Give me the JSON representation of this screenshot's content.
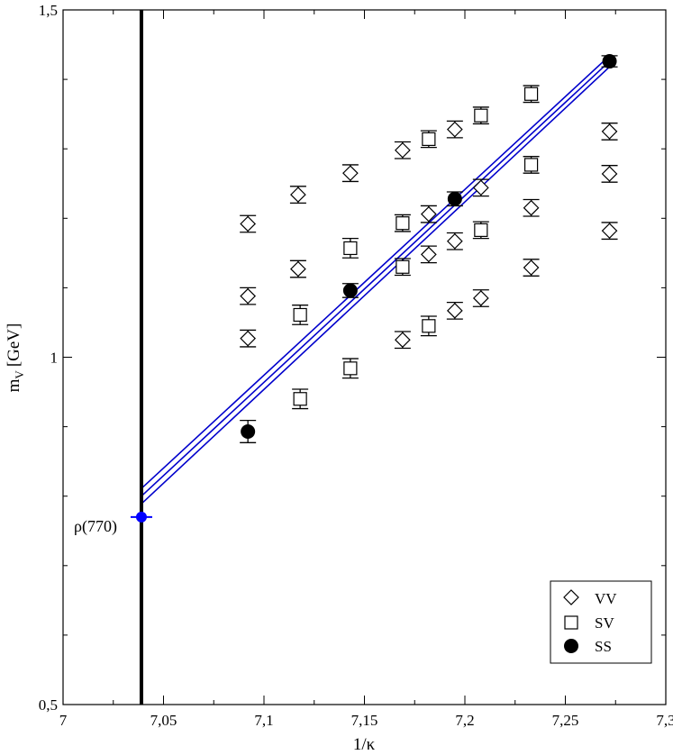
{
  "chart_data": {
    "type": "scatter",
    "xlabel": "1/κ",
    "ylabel_main": "m",
    "ylabel_sub": "V",
    "ylabel_unit": "[GeV]",
    "xlim": [
      7.0,
      7.3
    ],
    "ylim": [
      0.5,
      1.5
    ],
    "x_ticks": [
      7.0,
      7.05,
      7.1,
      7.15,
      7.2,
      7.25,
      7.3
    ],
    "x_tick_labels": [
      "7",
      "7,05",
      "7,1",
      "7,15",
      "7,2",
      "7,25",
      "7,3"
    ],
    "y_tick_labels": [
      {
        "value": 0.5,
        "label": "0,5"
      },
      {
        "value": 1.0,
        "label": "1"
      },
      {
        "value": 1.5,
        "label": "1,5"
      }
    ],
    "y_minor_ticks": [
      0.6,
      0.7,
      0.8,
      0.9,
      1.1,
      1.2,
      1.3,
      1.4
    ],
    "x_minor_ticks": [
      7.025,
      7.075,
      7.125,
      7.175,
      7.225,
      7.275
    ],
    "grid": false,
    "legend_position": "bottom-right",
    "series": [
      {
        "name": "VV",
        "marker": "diamond",
        "points": [
          {
            "x": 7.092,
            "y": 1.192,
            "err": 0.012
          },
          {
            "x": 7.092,
            "y": 1.088,
            "err": 0.012
          },
          {
            "x": 7.092,
            "y": 1.027,
            "err": 0.012
          },
          {
            "x": 7.117,
            "y": 1.234,
            "err": 0.012
          },
          {
            "x": 7.117,
            "y": 1.127,
            "err": 0.012
          },
          {
            "x": 7.143,
            "y": 1.265,
            "err": 0.012
          },
          {
            "x": 7.169,
            "y": 1.298,
            "err": 0.012
          },
          {
            "x": 7.169,
            "y": 1.025,
            "err": 0.012
          },
          {
            "x": 7.182,
            "y": 1.206,
            "err": 0.012
          },
          {
            "x": 7.182,
            "y": 1.148,
            "err": 0.012
          },
          {
            "x": 7.195,
            "y": 1.328,
            "err": 0.012
          },
          {
            "x": 7.195,
            "y": 1.167,
            "err": 0.012
          },
          {
            "x": 7.195,
            "y": 1.067,
            "err": 0.012
          },
          {
            "x": 7.208,
            "y": 1.244,
            "err": 0.012
          },
          {
            "x": 7.208,
            "y": 1.085,
            "err": 0.012
          },
          {
            "x": 7.233,
            "y": 1.215,
            "err": 0.012
          },
          {
            "x": 7.233,
            "y": 1.129,
            "err": 0.012
          },
          {
            "x": 7.272,
            "y": 1.325,
            "err": 0.012
          },
          {
            "x": 7.272,
            "y": 1.264,
            "err": 0.012
          },
          {
            "x": 7.272,
            "y": 1.182,
            "err": 0.012
          }
        ]
      },
      {
        "name": "SV",
        "marker": "square",
        "points": [
          {
            "x": 7.118,
            "y": 1.061,
            "err": 0.014
          },
          {
            "x": 7.118,
            "y": 0.94,
            "err": 0.014
          },
          {
            "x": 7.143,
            "y": 1.157,
            "err": 0.014
          },
          {
            "x": 7.143,
            "y": 0.984,
            "err": 0.014
          },
          {
            "x": 7.169,
            "y": 1.193,
            "err": 0.012
          },
          {
            "x": 7.169,
            "y": 1.13,
            "err": 0.012
          },
          {
            "x": 7.182,
            "y": 1.314,
            "err": 0.012
          },
          {
            "x": 7.182,
            "y": 1.045,
            "err": 0.014
          },
          {
            "x": 7.208,
            "y": 1.348,
            "err": 0.012
          },
          {
            "x": 7.208,
            "y": 1.183,
            "err": 0.012
          },
          {
            "x": 7.233,
            "y": 1.379,
            "err": 0.012
          },
          {
            "x": 7.233,
            "y": 1.277,
            "err": 0.012
          }
        ]
      },
      {
        "name": "SS",
        "marker": "circle",
        "points": [
          {
            "x": 7.092,
            "y": 0.893,
            "err": 0.016
          },
          {
            "x": 7.143,
            "y": 1.096,
            "err": 0.01
          },
          {
            "x": 7.195,
            "y": 1.228,
            "err": 0.01
          },
          {
            "x": 7.272,
            "y": 1.426,
            "err": 0.008
          }
        ]
      }
    ],
    "fit_lines": {
      "color": "#0000cc",
      "x_range": [
        7.039,
        7.272
      ],
      "center": [
        0.8,
        1.426
      ],
      "upper": [
        0.811,
        1.434
      ],
      "lower": [
        0.789,
        1.418
      ]
    },
    "chiral_line": {
      "x": 7.039
    },
    "extrapolated_point": {
      "label": "ρ(770)",
      "x": 7.039,
      "y": 0.77,
      "color": "#0000ff"
    }
  }
}
